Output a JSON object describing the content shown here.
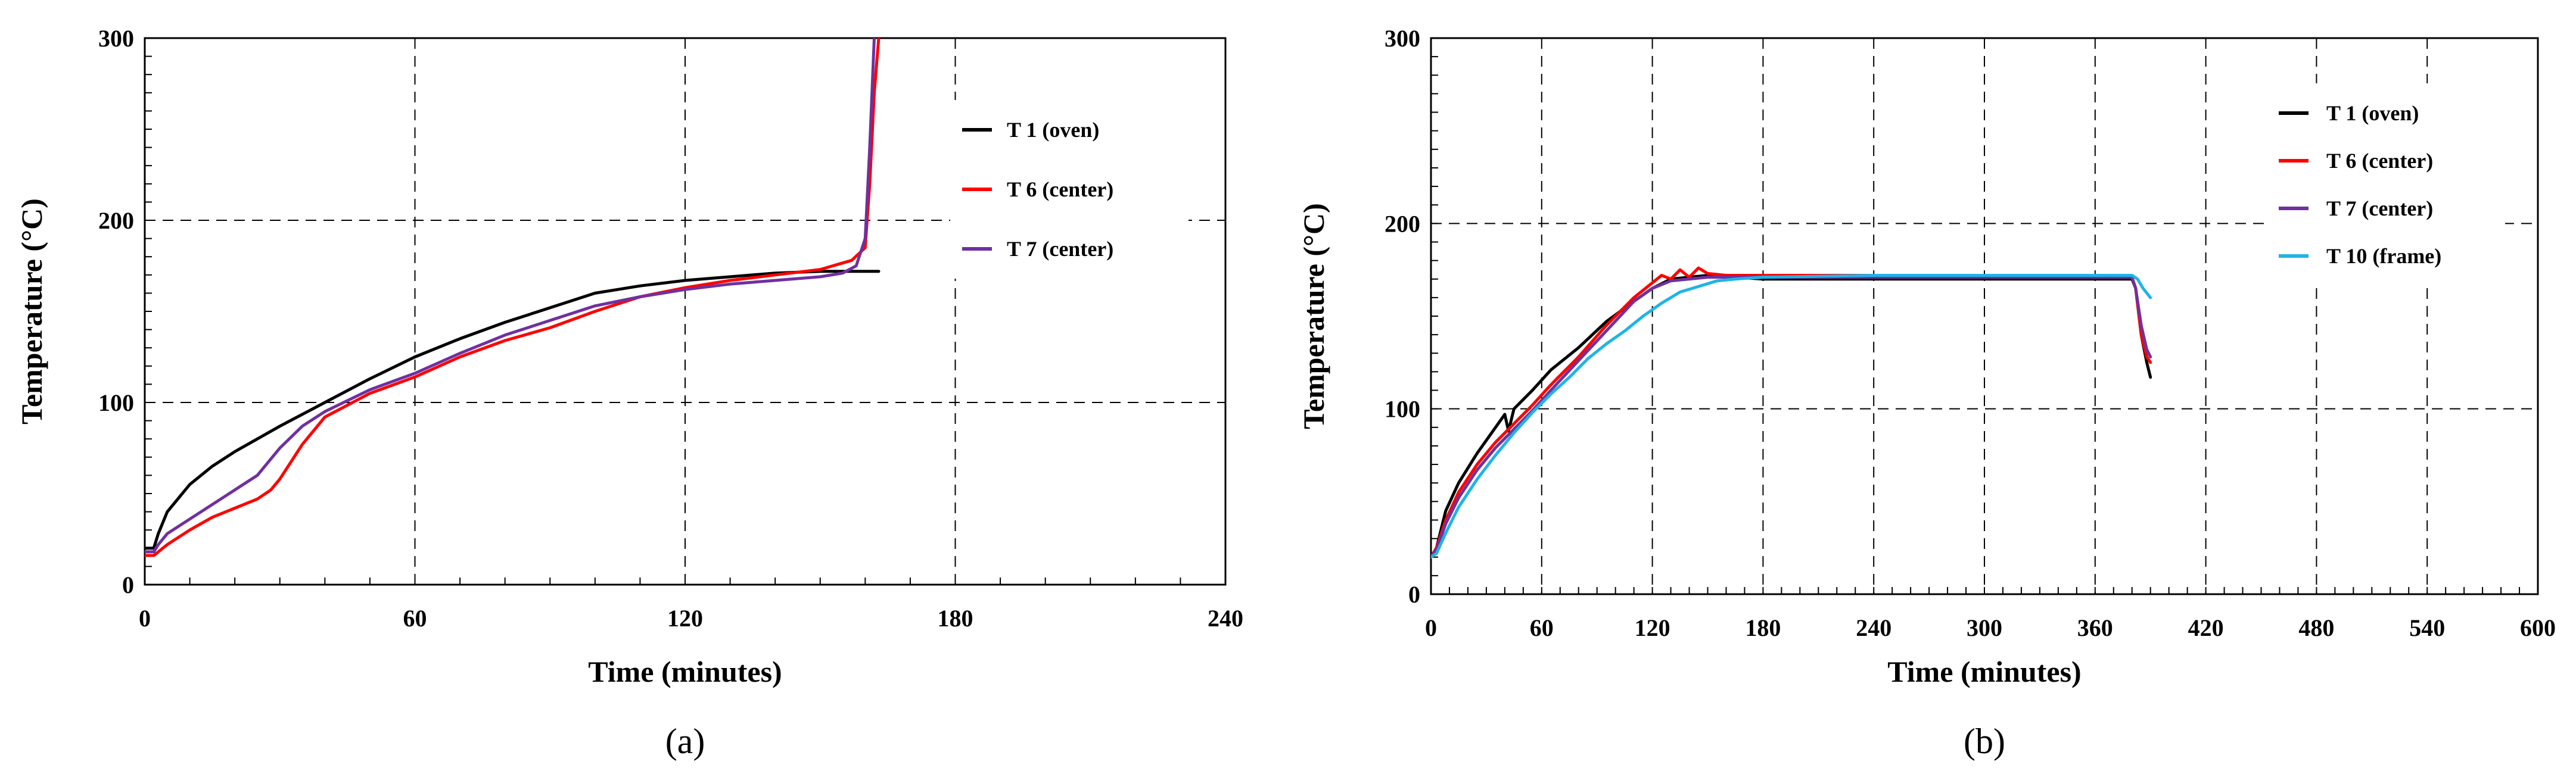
{
  "chart_data": [
    {
      "type": "line",
      "panel_label": "(a)",
      "xlabel": "Time (minutes)",
      "ylabel": "Temperature (°C)",
      "xlim": [
        0,
        240
      ],
      "ylim": [
        0,
        300
      ],
      "xticks": [
        0,
        60,
        120,
        180,
        240
      ],
      "yticks": [
        0,
        100,
        200,
        300
      ],
      "grid": "dashed",
      "legend": "top-right",
      "series": [
        {
          "name": "T 1 (oven)",
          "color": "#000000",
          "x": [
            0,
            2,
            3,
            5,
            10,
            15,
            20,
            30,
            40,
            50,
            60,
            70,
            80,
            90,
            100,
            110,
            120,
            130,
            140,
            150,
            155,
            160,
            163
          ],
          "y": [
            20,
            20,
            28,
            40,
            55,
            65,
            73,
            87,
            100,
            113,
            125,
            135,
            144,
            152,
            160,
            164,
            167,
            169,
            171,
            172,
            172,
            172,
            172
          ]
        },
        {
          "name": "T 6 (center)",
          "color": "#ff0000",
          "x": [
            0,
            2,
            3,
            5,
            10,
            15,
            20,
            25,
            28,
            30,
            35,
            40,
            50,
            60,
            70,
            80,
            90,
            100,
            110,
            120,
            130,
            140,
            150,
            157,
            160,
            161,
            162,
            163
          ],
          "y": [
            16,
            16,
            18,
            22,
            30,
            37,
            42,
            47,
            52,
            58,
            77,
            92,
            105,
            114,
            125,
            134,
            141,
            150,
            158,
            163,
            167,
            170,
            173,
            178,
            185,
            220,
            270,
            300
          ]
        },
        {
          "name": "T 7 (center)",
          "color": "#7030a0",
          "x": [
            0,
            2,
            3,
            5,
            10,
            15,
            20,
            25,
            30,
            35,
            40,
            50,
            60,
            70,
            80,
            90,
            100,
            110,
            120,
            130,
            140,
            150,
            155,
            158,
            160,
            161,
            162
          ],
          "y": [
            18,
            18,
            22,
            28,
            36,
            44,
            52,
            60,
            75,
            87,
            95,
            107,
            116,
            127,
            137,
            145,
            153,
            158,
            162,
            165,
            167,
            169,
            171,
            175,
            190,
            240,
            300
          ]
        }
      ]
    },
    {
      "type": "line",
      "panel_label": "(b)",
      "xlabel": "Time (minutes)",
      "ylabel": "Temperature (°C)",
      "xlim": [
        0,
        600
      ],
      "ylim": [
        0,
        300
      ],
      "xticks": [
        0,
        60,
        120,
        180,
        240,
        300,
        360,
        420,
        480,
        540,
        600
      ],
      "yticks": [
        0,
        100,
        200,
        300
      ],
      "grid": "dashed",
      "legend": "top-right",
      "series": [
        {
          "name": "T 1 (oven)",
          "color": "#000000",
          "x": [
            0,
            3,
            8,
            15,
            25,
            35,
            40,
            42,
            45,
            55,
            65,
            80,
            95,
            110,
            120,
            130,
            150,
            180,
            240,
            300,
            360,
            380,
            382,
            385,
            388,
            390
          ],
          "y": [
            20,
            25,
            45,
            60,
            76,
            90,
            97,
            88,
            100,
            110,
            121,
            133,
            147,
            158,
            165,
            170,
            172,
            170,
            170,
            170,
            170,
            170,
            165,
            140,
            125,
            117
          ]
        },
        {
          "name": "T 6 (center)",
          "color": "#ff0000",
          "x": [
            0,
            3,
            8,
            15,
            25,
            35,
            45,
            55,
            65,
            80,
            95,
            110,
            120,
            125,
            130,
            135,
            140,
            145,
            150,
            160,
            180,
            240,
            300,
            360,
            380,
            382,
            385,
            388,
            390
          ],
          "y": [
            20,
            25,
            40,
            55,
            70,
            82,
            92,
            102,
            113,
            128,
            145,
            160,
            168,
            172,
            170,
            175,
            171,
            176,
            173,
            172,
            172,
            172,
            172,
            171,
            171,
            165,
            140,
            128,
            125
          ]
        },
        {
          "name": "T 7 (center)",
          "color": "#7030a0",
          "x": [
            0,
            3,
            8,
            15,
            25,
            35,
            45,
            55,
            65,
            80,
            95,
            110,
            120,
            130,
            150,
            180,
            240,
            300,
            360,
            380,
            382,
            385,
            388,
            390
          ],
          "y": [
            20,
            24,
            38,
            52,
            67,
            79,
            89,
            99,
            110,
            126,
            142,
            158,
            165,
            169,
            171,
            171,
            171,
            171,
            171,
            171,
            165,
            145,
            132,
            128
          ]
        },
        {
          "name": "T 10 (frame)",
          "color": "#1fb4e6",
          "x": [
            0,
            3,
            8,
            15,
            25,
            35,
            45,
            55,
            65,
            75,
            85,
            95,
            105,
            115,
            125,
            135,
            145,
            155,
            165,
            180,
            240,
            300,
            360,
            380,
            383,
            386,
            390
          ],
          "y": [
            20,
            22,
            33,
            47,
            62,
            75,
            87,
            98,
            108,
            117,
            127,
            135,
            142,
            150,
            157,
            163,
            166,
            169,
            170,
            171,
            172,
            172,
            172,
            172,
            170,
            165,
            160
          ]
        }
      ]
    }
  ]
}
